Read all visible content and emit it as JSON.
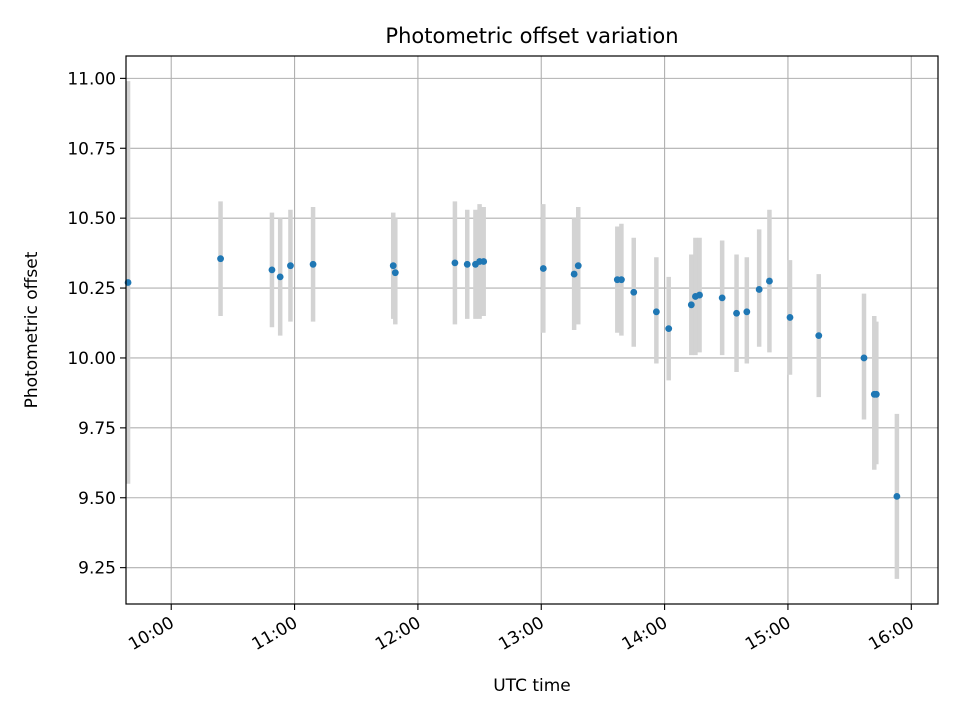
{
  "chart_data": {
    "type": "scatter",
    "title": "Photometric offset variation",
    "xlabel": "UTC time",
    "ylabel": "Photometric offset",
    "x_tick_labels": [
      "10:00",
      "11:00",
      "12:00",
      "13:00",
      "14:00",
      "15:00",
      "16:00"
    ],
    "y_tick_labels": [
      "9.25",
      "9.50",
      "9.75",
      "10.00",
      "10.25",
      "10.50",
      "10.75",
      "11.00"
    ],
    "xlim": [
      "09:38",
      "16:13"
    ],
    "ylim": [
      9.12,
      11.08
    ],
    "grid": true,
    "colors": {
      "marker": "#1f77b4",
      "errorbar": "#d3d3d3",
      "grid": "#b0b0b0"
    },
    "points": [
      {
        "t": "09:39",
        "y": 10.27,
        "lo": 9.55,
        "hi": 10.99
      },
      {
        "t": "10:24",
        "y": 10.355,
        "lo": 10.15,
        "hi": 10.56
      },
      {
        "t": "10:49",
        "y": 10.315,
        "lo": 10.11,
        "hi": 10.52
      },
      {
        "t": "10:53",
        "y": 10.29,
        "lo": 10.08,
        "hi": 10.5
      },
      {
        "t": "10:58",
        "y": 10.33,
        "lo": 10.13,
        "hi": 10.53
      },
      {
        "t": "11:09",
        "y": 10.335,
        "lo": 10.13,
        "hi": 10.54
      },
      {
        "t": "11:48",
        "y": 10.33,
        "lo": 10.14,
        "hi": 10.52
      },
      {
        "t": "11:49",
        "y": 10.305,
        "lo": 10.12,
        "hi": 10.5
      },
      {
        "t": "12:18",
        "y": 10.34,
        "lo": 10.12,
        "hi": 10.56
      },
      {
        "t": "12:24",
        "y": 10.335,
        "lo": 10.14,
        "hi": 10.53
      },
      {
        "t": "12:28",
        "y": 10.335,
        "lo": 10.14,
        "hi": 10.53
      },
      {
        "t": "12:30",
        "y": 10.345,
        "lo": 10.14,
        "hi": 10.55
      },
      {
        "t": "12:32",
        "y": 10.345,
        "lo": 10.15,
        "hi": 10.54
      },
      {
        "t": "13:01",
        "y": 10.32,
        "lo": 10.09,
        "hi": 10.55
      },
      {
        "t": "13:16",
        "y": 10.3,
        "lo": 10.1,
        "hi": 10.5
      },
      {
        "t": "13:18",
        "y": 10.33,
        "lo": 10.12,
        "hi": 10.54
      },
      {
        "t": "13:37",
        "y": 10.28,
        "lo": 10.09,
        "hi": 10.47
      },
      {
        "t": "13:39",
        "y": 10.28,
        "lo": 10.08,
        "hi": 10.48
      },
      {
        "t": "13:45",
        "y": 10.235,
        "lo": 10.04,
        "hi": 10.43
      },
      {
        "t": "13:56",
        "y": 10.165,
        "lo": 9.98,
        "hi": 10.36
      },
      {
        "t": "14:02",
        "y": 10.105,
        "lo": 9.92,
        "hi": 10.29
      },
      {
        "t": "14:13",
        "y": 10.19,
        "lo": 10.01,
        "hi": 10.37
      },
      {
        "t": "14:15",
        "y": 10.22,
        "lo": 10.01,
        "hi": 10.43
      },
      {
        "t": "14:17",
        "y": 10.225,
        "lo": 10.02,
        "hi": 10.43
      },
      {
        "t": "14:28",
        "y": 10.215,
        "lo": 10.01,
        "hi": 10.42
      },
      {
        "t": "14:35",
        "y": 10.16,
        "lo": 9.95,
        "hi": 10.37
      },
      {
        "t": "14:40",
        "y": 10.165,
        "lo": 9.98,
        "hi": 10.36
      },
      {
        "t": "14:46",
        "y": 10.245,
        "lo": 10.04,
        "hi": 10.46
      },
      {
        "t": "14:51",
        "y": 10.275,
        "lo": 10.02,
        "hi": 10.53
      },
      {
        "t": "15:01",
        "y": 10.145,
        "lo": 9.94,
        "hi": 10.35
      },
      {
        "t": "15:15",
        "y": 10.08,
        "lo": 9.86,
        "hi": 10.3
      },
      {
        "t": "15:37",
        "y": 10.0,
        "lo": 9.78,
        "hi": 10.23
      },
      {
        "t": "15:42",
        "y": 9.87,
        "lo": 9.6,
        "hi": 10.15
      },
      {
        "t": "15:43",
        "y": 9.87,
        "lo": 9.62,
        "hi": 10.13
      },
      {
        "t": "15:53",
        "y": 9.505,
        "lo": 9.21,
        "hi": 9.8
      }
    ]
  }
}
